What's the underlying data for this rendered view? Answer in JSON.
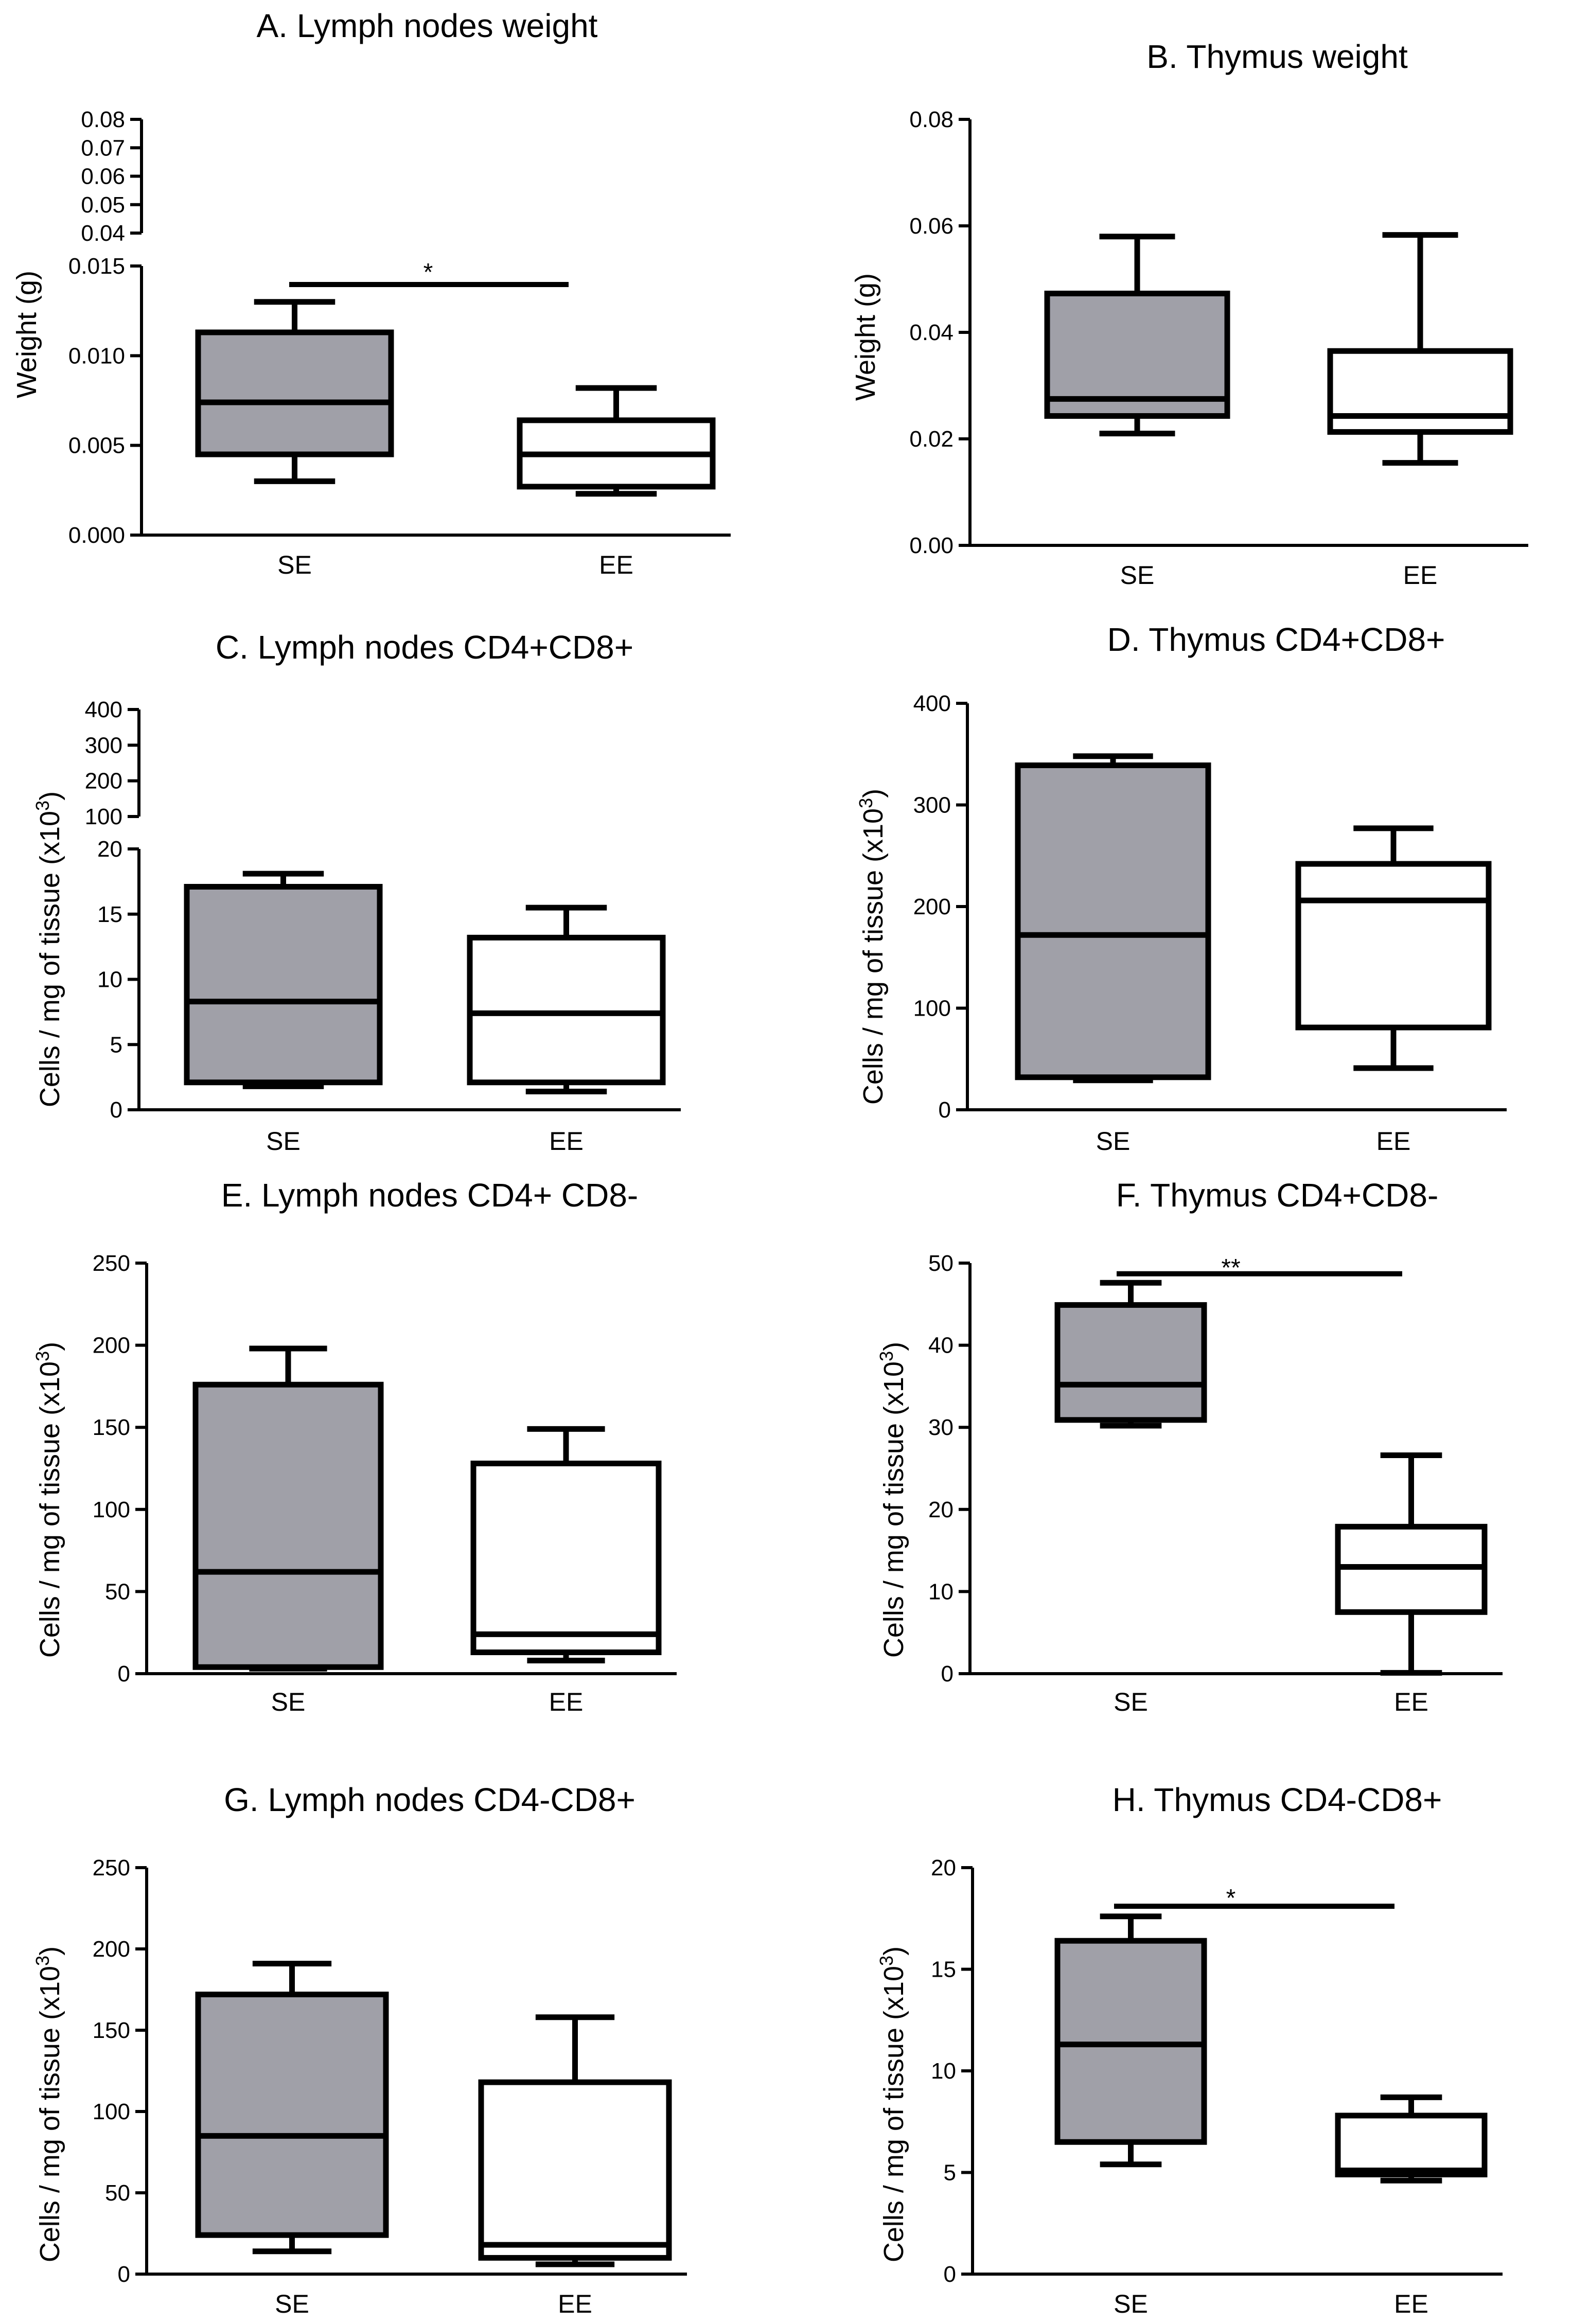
{
  "colors": {
    "SE": "#a0a0a8",
    "EE": "#ffffff",
    "stroke": "#000000"
  },
  "chart_data": [
    {
      "id": "A",
      "type": "box",
      "title": "A. Lymph nodes weight",
      "ylabel": "Weight (g)",
      "categories": [
        "SE",
        "EE"
      ],
      "broken_axis": true,
      "lower_ylim": [
        0,
        0.015
      ],
      "lower_ticks": [
        "0.000",
        "0.005",
        "0.010",
        "0.015"
      ],
      "upper_ylim": [
        0.04,
        0.08
      ],
      "upper_ticks": [
        "0.04",
        "0.05",
        "0.06",
        "0.07",
        "0.08"
      ],
      "boxes": [
        {
          "name": "SE",
          "min": 0.003,
          "q1": 0.0045,
          "median": 0.0074,
          "q3": 0.0113,
          "max": 0.013
        },
        {
          "name": "EE",
          "min": 0.0023,
          "q1": 0.0027,
          "median": 0.0045,
          "q3": 0.0064,
          "max": 0.0082
        }
      ],
      "significance": {
        "label": "*",
        "from": "SE",
        "to": "EE",
        "y": 0.0139
      }
    },
    {
      "id": "B",
      "type": "box",
      "title": "B. Thymus weight",
      "ylabel": "Weight (g)",
      "categories": [
        "SE",
        "EE"
      ],
      "ylim": [
        0,
        0.08
      ],
      "ticks": [
        "0.00",
        "0.02",
        "0.04",
        "0.06",
        "0.08"
      ],
      "boxes": [
        {
          "name": "SE",
          "min": 0.021,
          "q1": 0.0243,
          "median": 0.0275,
          "q3": 0.0473,
          "max": 0.058
        },
        {
          "name": "EE",
          "min": 0.0155,
          "q1": 0.0213,
          "median": 0.0243,
          "q3": 0.0365,
          "max": 0.0583
        }
      ]
    },
    {
      "id": "C",
      "type": "box",
      "title": "C. Lymph nodes CD4+CD8+",
      "ylabel": "Cells / mg of tissue (x10",
      "ylabel_sup": "3",
      "ylabel_end": ")",
      "categories": [
        "SE",
        "EE"
      ],
      "broken_axis": true,
      "lower_ylim": [
        0,
        20
      ],
      "lower_ticks": [
        "0",
        "5",
        "10",
        "15",
        "20"
      ],
      "upper_ylim": [
        100,
        400
      ],
      "upper_ticks": [
        "100",
        "200",
        "300",
        "400"
      ],
      "boxes": [
        {
          "name": "SE",
          "min": 1.8,
          "q1": 2.1,
          "median": 8.3,
          "q3": 17.1,
          "max": 18.1
        },
        {
          "name": "EE",
          "min": 1.4,
          "q1": 2.1,
          "median": 7.4,
          "q3": 13.2,
          "max": 15.5
        }
      ]
    },
    {
      "id": "D",
      "type": "box",
      "title": "D. Thymus CD4+CD8+",
      "ylabel": "Cells / mg of tissue (x10",
      "ylabel_sup": "3",
      "ylabel_end": ")",
      "categories": [
        "SE",
        "EE"
      ],
      "ylim": [
        0,
        400
      ],
      "ticks": [
        "0",
        "100",
        "200",
        "300",
        "400"
      ],
      "boxes": [
        {
          "name": "SE",
          "min": 29,
          "q1": 32,
          "median": 172,
          "q3": 339,
          "max": 348
        },
        {
          "name": "EE",
          "min": 41,
          "q1": 81,
          "median": 206,
          "q3": 242,
          "max": 277
        }
      ]
    },
    {
      "id": "E",
      "type": "box",
      "title": "E. Lymph nodes CD4+ CD8-",
      "ylabel": "Cells / mg of tissue (x10",
      "ylabel_sup": "3",
      "ylabel_end": ")",
      "categories": [
        "SE",
        "EE"
      ],
      "ylim": [
        0,
        250
      ],
      "ticks": [
        "0",
        "50",
        "100",
        "150",
        "200",
        "250"
      ],
      "boxes": [
        {
          "name": "SE",
          "min": 3,
          "q1": 4,
          "median": 62,
          "q3": 176,
          "max": 198
        },
        {
          "name": "EE",
          "min": 8,
          "q1": 13,
          "median": 24,
          "q3": 128,
          "max": 149
        }
      ]
    },
    {
      "id": "F",
      "type": "box",
      "title": "F. Thymus CD4+CD8-",
      "ylabel": "Cells / mg of tissue (x10",
      "ylabel_sup": "3",
      "ylabel_end": ")",
      "categories": [
        "SE",
        "EE"
      ],
      "ylim": [
        0,
        50
      ],
      "ticks": [
        "0",
        "10",
        "20",
        "30",
        "40",
        "50"
      ],
      "boxes": [
        {
          "name": "SE",
          "min": 30.2,
          "q1": 30.9,
          "median": 35.2,
          "q3": 44.9,
          "max": 47.6
        },
        {
          "name": "EE",
          "min": 0.1,
          "q1": 7.5,
          "median": 13,
          "q3": 17.9,
          "max": 26.6
        }
      ],
      "significance": {
        "label": "**",
        "from": "SE",
        "to": "EE",
        "y": 48.7
      }
    },
    {
      "id": "G",
      "type": "box",
      "title": "G. Lymph nodes CD4-CD8+",
      "ylabel": "Cells / mg of tissue (x10",
      "ylabel_sup": "3",
      "ylabel_end": ")",
      "categories": [
        "SE",
        "EE"
      ],
      "ylim": [
        0,
        250
      ],
      "ticks": [
        "0",
        "50",
        "100",
        "150",
        "200",
        "250"
      ],
      "boxes": [
        {
          "name": "SE",
          "min": 14,
          "q1": 24,
          "median": 85,
          "q3": 172,
          "max": 191
        },
        {
          "name": "EE",
          "min": 6,
          "q1": 10,
          "median": 18,
          "q3": 118,
          "max": 158
        }
      ]
    },
    {
      "id": "H",
      "type": "box",
      "title": "H. Thymus CD4-CD8+",
      "ylabel": "Cells / mg of tissue (x10",
      "ylabel_sup": "3",
      "ylabel_end": ")",
      "categories": [
        "SE",
        "EE"
      ],
      "ylim": [
        0,
        20
      ],
      "ticks": [
        "0",
        "5",
        "10",
        "15",
        "20"
      ],
      "boxes": [
        {
          "name": "SE",
          "min": 5.4,
          "q1": 6.5,
          "median": 11.3,
          "q3": 16.4,
          "max": 17.6
        },
        {
          "name": "EE",
          "min": 4.6,
          "q1": 4.9,
          "median": 5.1,
          "q3": 7.8,
          "max": 8.7
        }
      ],
      "significance": {
        "label": "*",
        "from": "SE",
        "to": "EE",
        "y": 18.1
      }
    }
  ]
}
